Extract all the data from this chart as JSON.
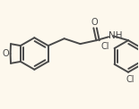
{
  "bg_color": "#fdf8ed",
  "line_color": "#4a4a4a",
  "text_color": "#4a4a4a",
  "linewidth": 1.4,
  "fontsize": 7.0,
  "figsize": [
    1.55,
    1.22
  ],
  "dpi": 100,
  "xlim": [
    0,
    155
  ],
  "ylim": [
    0,
    122
  ]
}
